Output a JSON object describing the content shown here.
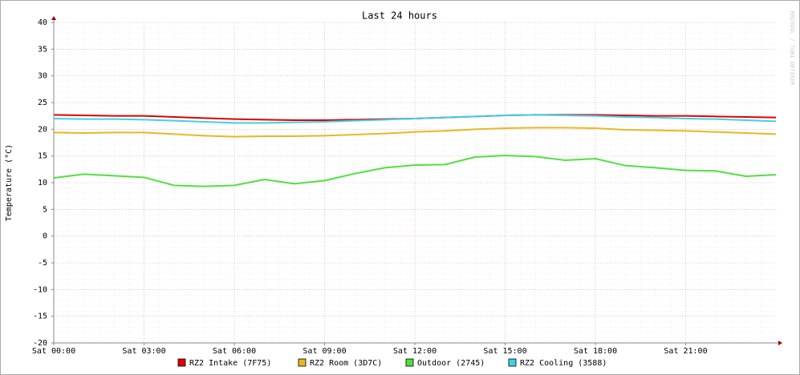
{
  "chart_data": {
    "type": "line",
    "title": "Last 24 hours",
    "y_label": "Temperature (°C)",
    "watermark": "RRDTOOL / TOBI OETIKER",
    "x": [
      0,
      1,
      2,
      3,
      4,
      5,
      6,
      7,
      8,
      9,
      10,
      11,
      12,
      13,
      14,
      15,
      16,
      17,
      18,
      19,
      20,
      21,
      22,
      23,
      24
    ],
    "xlim": [
      0,
      24
    ],
    "xticks": [
      {
        "value": 0,
        "label": "Sat 00:00"
      },
      {
        "value": 3,
        "label": "Sat 03:00"
      },
      {
        "value": 6,
        "label": "Sat 06:00"
      },
      {
        "value": 9,
        "label": "Sat 09:00"
      },
      {
        "value": 12,
        "label": "Sat 12:00"
      },
      {
        "value": 15,
        "label": "Sat 15:00"
      },
      {
        "value": 18,
        "label": "Sat 18:00"
      },
      {
        "value": 21,
        "label": "Sat 21:00"
      }
    ],
    "ylim": [
      -20,
      40
    ],
    "yticks": [
      -20,
      -15,
      -10,
      -5,
      0,
      5,
      10,
      15,
      20,
      25,
      30,
      35,
      40
    ],
    "grid": true,
    "series": [
      {
        "name": "RZ2 Intake (7F75)",
        "color": "#e00000",
        "values": [
          22.7,
          22.6,
          22.5,
          22.5,
          22.3,
          22.1,
          21.9,
          21.8,
          21.7,
          21.7,
          21.8,
          21.9,
          22.0,
          22.2,
          22.4,
          22.6,
          22.7,
          22.7,
          22.7,
          22.6,
          22.5,
          22.5,
          22.4,
          22.3,
          22.2
        ]
      },
      {
        "name": "RZ2 Room (3D7C)",
        "color": "#e8b820",
        "values": [
          19.4,
          19.3,
          19.4,
          19.4,
          19.1,
          18.8,
          18.6,
          18.7,
          18.7,
          18.8,
          19.0,
          19.2,
          19.5,
          19.7,
          20.0,
          20.2,
          20.3,
          20.3,
          20.2,
          19.9,
          19.8,
          19.7,
          19.5,
          19.3,
          19.1
        ]
      },
      {
        "name": "Outdoor (2745)",
        "color": "#50e040",
        "values": [
          10.9,
          11.6,
          11.3,
          11.0,
          9.5,
          9.3,
          9.5,
          10.6,
          9.8,
          10.4,
          11.7,
          12.8,
          13.3,
          13.4,
          14.8,
          15.1,
          14.9,
          14.2,
          14.5,
          13.2,
          12.8,
          12.3,
          12.2,
          11.2,
          11.5
        ]
      },
      {
        "name": "RZ2 Cooling (3588)",
        "color": "#40d0e8",
        "values": [
          22.0,
          21.9,
          21.9,
          21.8,
          21.6,
          21.4,
          21.2,
          21.2,
          21.3,
          21.4,
          21.6,
          21.8,
          22.0,
          22.2,
          22.4,
          22.6,
          22.7,
          22.6,
          22.5,
          22.3,
          22.2,
          22.0,
          21.9,
          21.7,
          21.5
        ]
      }
    ]
  }
}
